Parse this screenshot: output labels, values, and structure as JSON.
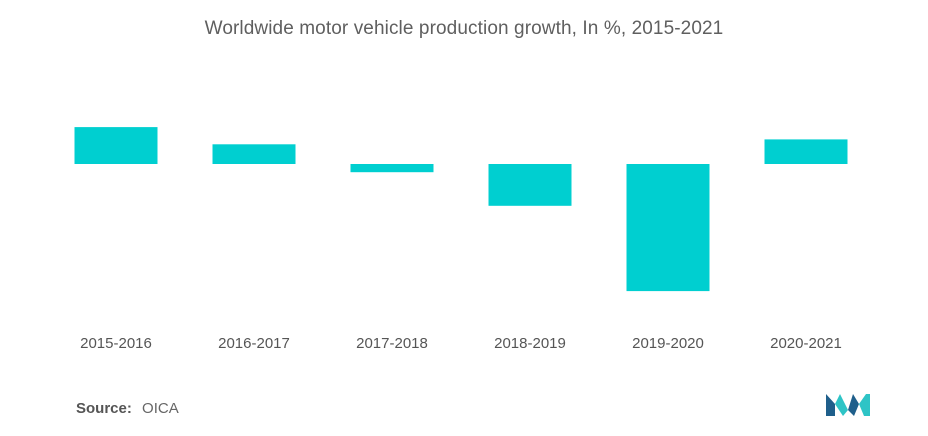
{
  "colors": {
    "bar": "#00cfd0",
    "title": "#5f5f5f",
    "tick": "#555555",
    "logo_dark": "#1f5f8b",
    "logo_light": "#2ec4c6"
  },
  "chart_data": {
    "type": "bar",
    "title": "Worldwide motor vehicle production growth, In %, 2015-2021",
    "xlabel": "",
    "ylabel": "",
    "categories": [
      "2015-2016",
      "2016-2017",
      "2017-2018",
      "2018-2019",
      "2019-2020",
      "2020-2021"
    ],
    "values": [
      4.5,
      2.4,
      -1.0,
      -5.1,
      -15.5,
      3.0
    ],
    "ylim": [
      -16,
      6
    ],
    "grid": false,
    "legend": "none"
  },
  "footer": {
    "source_label": "Source:",
    "source_value": "OICA",
    "logo_icon": "mordor-intelligence-logo-icon"
  }
}
